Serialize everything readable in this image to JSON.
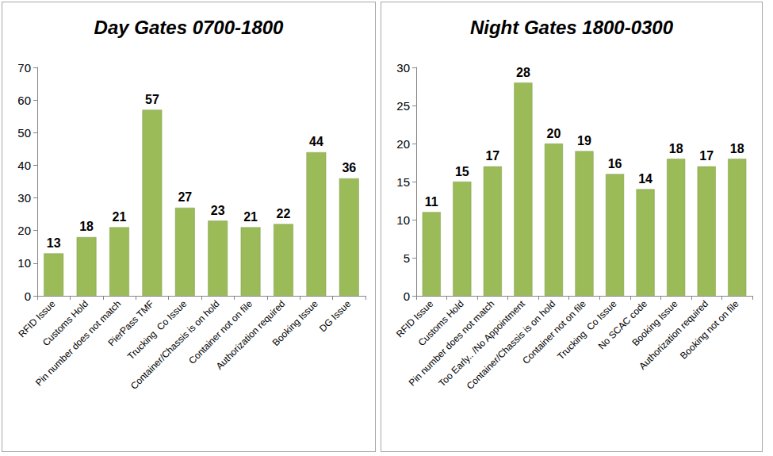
{
  "chart_data": [
    {
      "type": "bar",
      "title": "Day Gates 0700-1800",
      "categories": [
        "RFID Issue",
        "Customs Hold",
        "Pin number does not match",
        "PierPass TMF",
        "Trucking  Co Issue",
        "Container/Chassis is on hold",
        "Container not on file",
        "Authorization required",
        "Booking Issue",
        "DG Issue"
      ],
      "values": [
        13,
        18,
        21,
        57,
        27,
        23,
        21,
        22,
        44,
        36
      ],
      "color": "#9bbb59",
      "ylim": [
        0,
        70
      ],
      "yticks": [
        0,
        10,
        20,
        30,
        40,
        50,
        60,
        70
      ],
      "grid": false,
      "data_labels": true
    },
    {
      "type": "bar",
      "title": "Night Gates 1800-0300",
      "categories": [
        "RFID Issue",
        "Customs Hold",
        "Pin number does not match",
        "Too Early.. /No Appointment",
        "Container/Chassis is on hold",
        "Container not on file",
        "Trucking  Co Issue",
        "No SCAC code",
        "Booking Issue",
        "Authorization required",
        "Booking not on file"
      ],
      "values": [
        11,
        15,
        17,
        28,
        20,
        19,
        16,
        14,
        18,
        17,
        18
      ],
      "color": "#9bbb59",
      "ylim": [
        0,
        30
      ],
      "yticks": [
        0,
        5,
        10,
        15,
        20,
        25,
        30
      ],
      "grid": false,
      "data_labels": true
    }
  ]
}
